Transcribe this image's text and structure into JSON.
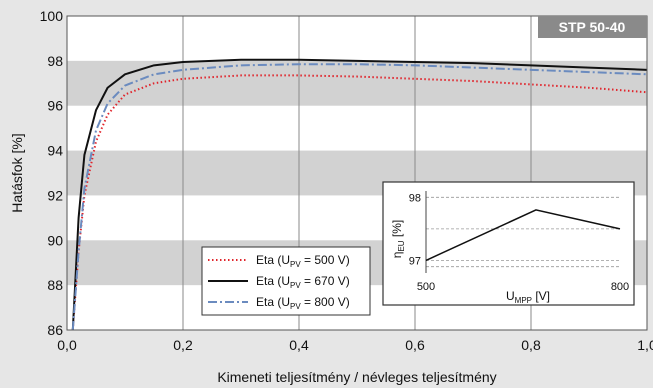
{
  "chart_data": {
    "type": "line",
    "badge": "STP 50-40",
    "xlabel": "Kimeneti teljesítmény / névleges teljesítmény",
    "ylabel": "Hatásfok [%]",
    "xlim": [
      0,
      1
    ],
    "ylim": [
      86,
      100
    ],
    "x_ticks": [
      "0,0",
      "0,2",
      "0,4",
      "0,6",
      "0,8",
      "1,0"
    ],
    "y_ticks": [
      "86",
      "88",
      "90",
      "92",
      "94",
      "96",
      "98",
      "100"
    ],
    "grid": true,
    "legend_position": "bottom-left",
    "series": [
      {
        "name": "Eta (U",
        "name_sub": "PV",
        "name_suffix": " = 500 V)",
        "color": "#e0242b",
        "style": "dotted",
        "x": [
          0.01,
          0.02,
          0.03,
          0.05,
          0.07,
          0.1,
          0.15,
          0.2,
          0.3,
          0.4,
          0.5,
          0.6,
          0.7,
          0.8,
          0.9,
          1.0
        ],
        "y": [
          86.0,
          89.5,
          92.0,
          94.4,
          95.6,
          96.5,
          97.0,
          97.2,
          97.35,
          97.35,
          97.3,
          97.2,
          97.1,
          96.95,
          96.8,
          96.6
        ]
      },
      {
        "name": "Eta (U",
        "name_sub": "PV",
        "name_suffix": " = 670 V)",
        "color": "#111111",
        "style": "solid",
        "x": [
          0.01,
          0.02,
          0.03,
          0.05,
          0.07,
          0.1,
          0.15,
          0.2,
          0.3,
          0.4,
          0.5,
          0.6,
          0.7,
          0.8,
          0.9,
          1.0
        ],
        "y": [
          86.0,
          91.0,
          93.8,
          95.8,
          96.8,
          97.4,
          97.8,
          97.95,
          98.05,
          98.05,
          98.0,
          97.95,
          97.9,
          97.8,
          97.7,
          97.6
        ]
      },
      {
        "name": "Eta (U",
        "name_sub": "PV",
        "name_suffix": " = 800 V)",
        "color": "#6b8bbf",
        "style": "dashdot",
        "x": [
          0.01,
          0.02,
          0.03,
          0.05,
          0.07,
          0.1,
          0.15,
          0.2,
          0.3,
          0.4,
          0.5,
          0.6,
          0.7,
          0.8,
          0.9,
          1.0
        ],
        "y": [
          86.0,
          89.5,
          92.3,
          94.9,
          96.1,
          96.9,
          97.4,
          97.6,
          97.8,
          97.85,
          97.85,
          97.8,
          97.7,
          97.6,
          97.5,
          97.4
        ]
      }
    ],
    "inset": {
      "ylabel_symbol": "η",
      "ylabel_sub": "EU",
      "ylabel_unit": " [%]",
      "xlabel_symbol": "U",
      "xlabel_sub": "MPP",
      "xlabel_unit": " [V]",
      "x_ticks": [
        "500",
        "800"
      ],
      "y_ticks": [
        "97",
        "98"
      ],
      "xlim": [
        500,
        800
      ],
      "ylim": [
        96.8,
        98.1
      ],
      "x": [
        500,
        670,
        800
      ],
      "y": [
        97.0,
        97.8,
        97.5
      ]
    }
  }
}
